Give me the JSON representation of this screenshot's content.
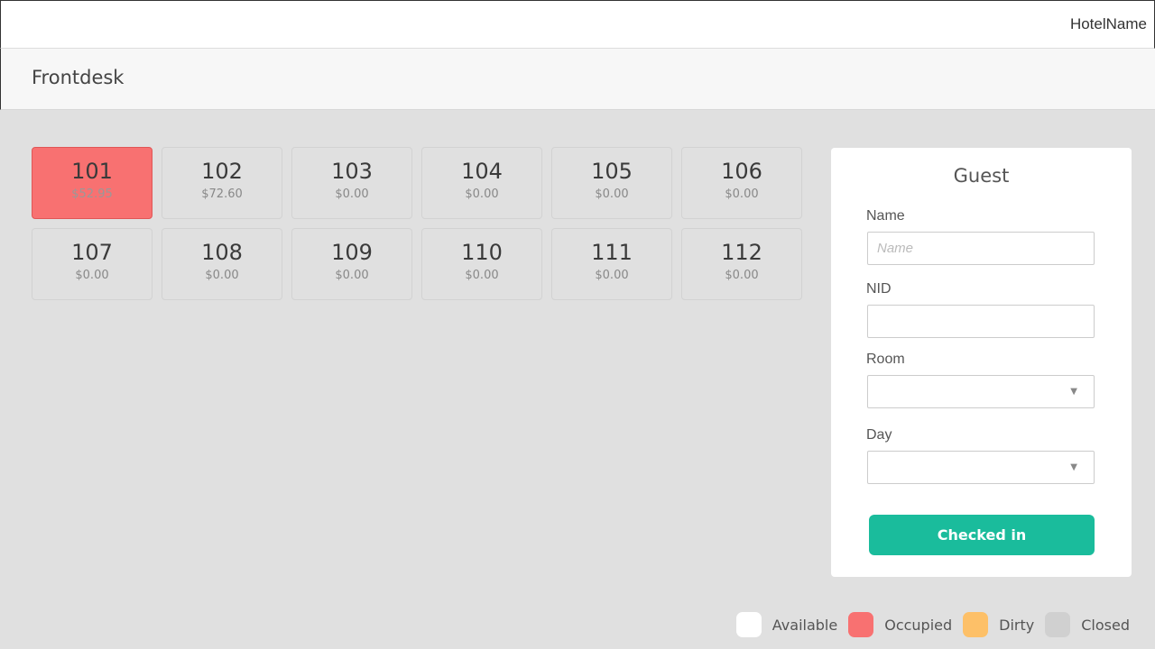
{
  "header": {
    "hotel_name": "HotelName"
  },
  "page": {
    "title": "Frontdesk"
  },
  "rooms": [
    {
      "number": "101",
      "price": "$52.95",
      "status": "occupied"
    },
    {
      "number": "102",
      "price": "$72.60",
      "status": "closed"
    },
    {
      "number": "103",
      "price": "$0.00",
      "status": "closed"
    },
    {
      "number": "104",
      "price": "$0.00",
      "status": "closed"
    },
    {
      "number": "105",
      "price": "$0.00",
      "status": "closed"
    },
    {
      "number": "106",
      "price": "$0.00",
      "status": "closed"
    },
    {
      "number": "107",
      "price": "$0.00",
      "status": "closed"
    },
    {
      "number": "108",
      "price": "$0.00",
      "status": "closed"
    },
    {
      "number": "109",
      "price": "$0.00",
      "status": "closed"
    },
    {
      "number": "110",
      "price": "$0.00",
      "status": "closed"
    },
    {
      "number": "111",
      "price": "$0.00",
      "status": "closed"
    },
    {
      "number": "112",
      "price": "$0.00",
      "status": "closed"
    }
  ],
  "guest": {
    "title": "Guest",
    "name_label": "Name",
    "name_placeholder": "Name",
    "name_value": "",
    "nid_label": "NID",
    "nid_value": "",
    "room_label": "Room",
    "room_value": "",
    "day_label": "Day",
    "day_value": "",
    "submit_label": "Checked in"
  },
  "legend": [
    {
      "label": "Available",
      "color": "#ffffff"
    },
    {
      "label": "Occupied",
      "color": "#f87171"
    },
    {
      "label": "Dirty",
      "color": "#fdc068"
    },
    {
      "label": "Closed",
      "color": "#d0d0d0"
    }
  ],
  "colors": {
    "accent": "#1abc9c"
  }
}
